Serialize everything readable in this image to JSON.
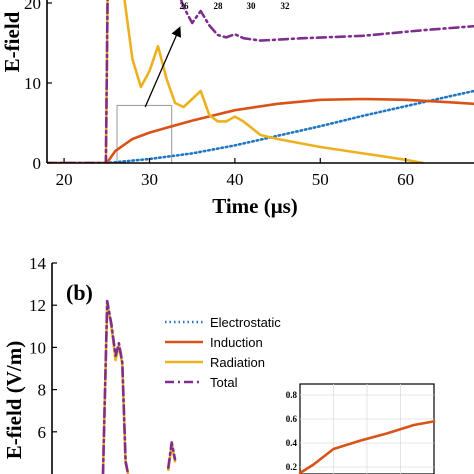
{
  "chart_data": [
    {
      "type": "line",
      "ylabel": "E-field",
      "xlabel": "Time (μs)",
      "xlim": [
        18,
        68
      ],
      "ylim": [
        0,
        21
      ],
      "xticks": [
        20,
        30,
        40,
        50,
        60
      ],
      "yticks": [
        0,
        10,
        20
      ],
      "inset_xticks": [
        "26",
        "28",
        "30",
        "32"
      ],
      "series": [
        {
          "key": "electrostatic",
          "color": "#1f77c4",
          "dash": "dotted",
          "points": [
            [
              18,
              0
            ],
            [
              25,
              0
            ],
            [
              30,
              0.5
            ],
            [
              35,
              1.2
            ],
            [
              40,
              2.2
            ],
            [
              45,
              3.4
            ],
            [
              50,
              4.6
            ],
            [
              55,
              5.9
            ],
            [
              60,
              7.1
            ],
            [
              65,
              8.3
            ],
            [
              68,
              9.0
            ]
          ]
        },
        {
          "key": "induction",
          "color": "#d95319",
          "dash": "solid",
          "points": [
            [
              18,
              0
            ],
            [
              25,
              0
            ],
            [
              26,
              1.5
            ],
            [
              28,
              3.0
            ],
            [
              30,
              3.8
            ],
            [
              32,
              4.4
            ],
            [
              35,
              5.3
            ],
            [
              40,
              6.6
            ],
            [
              45,
              7.4
            ],
            [
              50,
              7.9
            ],
            [
              55,
              8.0
            ],
            [
              60,
              7.9
            ],
            [
              65,
              7.6
            ],
            [
              68,
              7.4
            ]
          ]
        },
        {
          "key": "radiation",
          "color": "#edb120",
          "dash": "solid",
          "points": [
            [
              18,
              0
            ],
            [
              24.9,
              0
            ],
            [
              25.1,
              21
            ],
            [
              27,
              21
            ],
            [
              28,
              13
            ],
            [
              29,
              9.5
            ],
            [
              30,
              11.5
            ],
            [
              31,
              14.6
            ],
            [
              32,
              10.5
            ],
            [
              33,
              7.5
            ],
            [
              34,
              7.0
            ],
            [
              35,
              8.0
            ],
            [
              36,
              9.0
            ],
            [
              37,
              6.0
            ],
            [
              38,
              5.2
            ],
            [
              39,
              5.2
            ],
            [
              40,
              5.8
            ],
            [
              41,
              5.2
            ],
            [
              43,
              3.5
            ],
            [
              45,
              3.0
            ],
            [
              50,
              2.0
            ],
            [
              55,
              1.2
            ],
            [
              60,
              0.4
            ],
            [
              62,
              0
            ]
          ]
        },
        {
          "key": "total",
          "color": "#7e2f8e",
          "dash": "dashdot",
          "points": [
            [
              18,
              0
            ],
            [
              24.9,
              0
            ],
            [
              25.1,
              21
            ],
            [
              33.5,
              21
            ],
            [
              34,
              19.5
            ],
            [
              35,
              17.5
            ],
            [
              36,
              19
            ],
            [
              37,
              17.2
            ],
            [
              38,
              16.0
            ],
            [
              39,
              15.7
            ],
            [
              40,
              16.1
            ],
            [
              41,
              15.6
            ],
            [
              43,
              15.3
            ],
            [
              48,
              15.6
            ],
            [
              55,
              15.9
            ],
            [
              62,
              16.6
            ],
            [
              68,
              17.1
            ]
          ]
        }
      ]
    },
    {
      "type": "line",
      "panel_label": "(b)",
      "ylabel": "E-field (V/m)",
      "ylim": [
        4,
        14
      ],
      "yticks": [
        6,
        8,
        10,
        12,
        14
      ],
      "legend": {
        "position": "top-right",
        "entries": [
          {
            "label": "Electrostatic",
            "color": "#1f77c4",
            "dash": "dotted"
          },
          {
            "label": "Induction",
            "color": "#d95319",
            "dash": "solid"
          },
          {
            "label": "Radiation",
            "color": "#edb120",
            "dash": "solid"
          },
          {
            "label": "Total",
            "color": "#7e2f8e",
            "dash": "dashdot"
          }
        ]
      },
      "series": [
        {
          "key": "radiation",
          "color": "#edb120",
          "dash": "solid",
          "points": [
            [
              0,
              4
            ],
            [
              0.05,
              12.1
            ],
            [
              0.1,
              11.0
            ],
            [
              0.15,
              9.4
            ],
            [
              0.19,
              10.1
            ],
            [
              0.23,
              9.2
            ],
            [
              0.27,
              4.5
            ],
            [
              0.3,
              4.0
            ]
          ]
        },
        {
          "key": "total",
          "color": "#7e2f8e",
          "dash": "dashdot",
          "points": [
            [
              0,
              4
            ],
            [
              0.05,
              12.2
            ],
            [
              0.1,
              11.1
            ],
            [
              0.15,
              9.6
            ],
            [
              0.19,
              10.2
            ],
            [
              0.23,
              9.3
            ],
            [
              0.27,
              4.6
            ],
            [
              0.3,
              4.0
            ]
          ]
        },
        {
          "key": "radiation_small_peak",
          "color": "#edb120",
          "dash": "solid",
          "points": [
            [
              0.78,
              4.2
            ],
            [
              0.82,
              5.4
            ],
            [
              0.86,
              4.6
            ]
          ]
        },
        {
          "key": "total_small_peak",
          "color": "#7e2f8e",
          "dash": "dashdot",
          "points": [
            [
              0.78,
              4.3
            ],
            [
              0.82,
              5.5
            ],
            [
              0.86,
              4.7
            ]
          ]
        }
      ],
      "inset": {
        "yticks": [
          "0.2",
          "0.4",
          "0.6",
          "0.8"
        ],
        "series": [
          {
            "key": "induction",
            "color": "#d95319",
            "dash": "solid",
            "points": [
              [
                0,
                0.15
              ],
              [
                0.1,
                0.22
              ],
              [
                0.25,
                0.35
              ],
              [
                0.45,
                0.42
              ],
              [
                0.65,
                0.48
              ],
              [
                0.85,
                0.55
              ],
              [
                1,
                0.58
              ]
            ]
          }
        ]
      }
    }
  ]
}
